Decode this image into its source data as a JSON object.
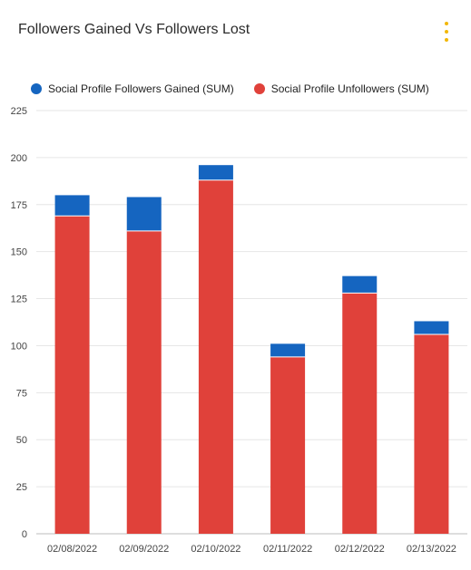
{
  "header": {
    "title": "Followers Gained Vs Followers Lost",
    "menu_icon": "kebab-menu-icon",
    "menu_color": "#f2b705"
  },
  "chart_data": {
    "type": "bar",
    "stacked": true,
    "categories": [
      "02/08/2022",
      "02/09/2022",
      "02/10/2022",
      "02/11/2022",
      "02/12/2022",
      "02/13/2022"
    ],
    "series": [
      {
        "name": "Social Profile Unfollowers (SUM)",
        "color": "#e0413a",
        "values": [
          169,
          161,
          188,
          94,
          128,
          106
        ]
      },
      {
        "name": "Social Profile Followers Gained (SUM)",
        "color": "#1565c0",
        "values": [
          11,
          18,
          8,
          7,
          9,
          7
        ]
      }
    ],
    "legend_order": [
      1,
      0
    ],
    "legend_position": "top-left",
    "ylim": [
      0,
      225
    ],
    "yticks": [
      0,
      25,
      50,
      75,
      100,
      125,
      150,
      175,
      200,
      225
    ],
    "grid": true
  }
}
